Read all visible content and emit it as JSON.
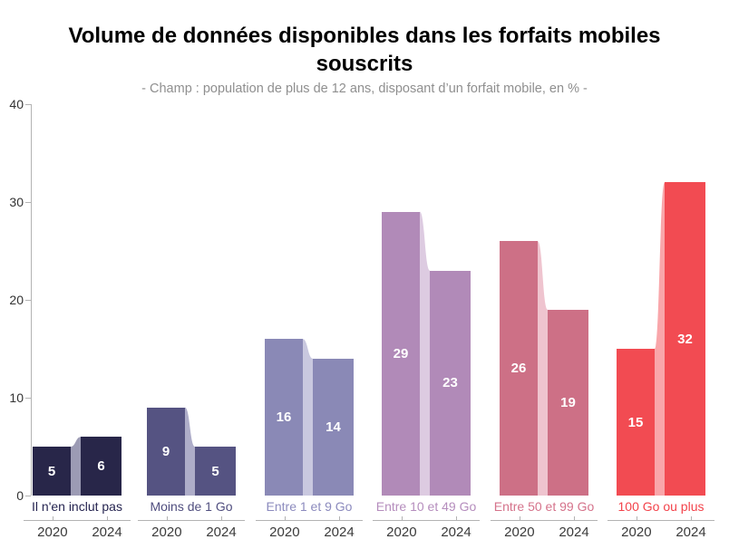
{
  "title": "Volume de données disponibles dans les forfaits mobiles souscrits",
  "subtitle": "- Champ : population de plus de 12 ans, disposant d’un forfait mobile, en % -",
  "axis": {
    "line_color": "#b3b3b3",
    "tick_label_color": "#333333",
    "year_label_color": "#3a3a3a"
  },
  "chart_data": {
    "type": "bar",
    "subtype": "paired-columns-with-slope-connectors",
    "title": "Volume de données disponibles dans les forfaits mobiles souscrits",
    "subtitle": "- Champ : population de plus de 12 ans, disposant d’un forfait mobile, en % -",
    "unit": "%",
    "grid": false,
    "ylim": [
      0,
      40
    ],
    "yticks": [
      0,
      10,
      20,
      30,
      40
    ],
    "years": [
      "2020",
      "2024"
    ],
    "categories": [
      {
        "label": "Il n'en inclut pas",
        "v2020": 5,
        "v2024": 6,
        "bar_color": "#282649",
        "connector_color": "#9c9bb4",
        "label_color": "#252450"
      },
      {
        "label": "Moins de 1 Go",
        "v2020": 9,
        "v2024": 5,
        "bar_color": "#555382",
        "connector_color": "#aeadc9",
        "label_color": "#504e7f"
      },
      {
        "label": "Entre 1 et 9 Go",
        "v2020": 16,
        "v2024": 14,
        "bar_color": "#8a89b6",
        "connector_color": "#c9c8df",
        "label_color": "#8c8bbe"
      },
      {
        "label": "Entre 10 et 49 Go",
        "v2020": 29,
        "v2024": 23,
        "bar_color": "#b18ab8",
        "connector_color": "#ddcbe1",
        "label_color": "#b58dbd"
      },
      {
        "label": "Entre 50 et 99 Go",
        "v2020": 26,
        "v2024": 19,
        "bar_color": "#cd7086",
        "connector_color": "#efc4cf",
        "label_color": "#d5738b"
      },
      {
        "label": "100 Go ou plus",
        "v2020": 15,
        "v2024": 32,
        "bar_color": "#f24b52",
        "connector_color": "#f9a6aa",
        "label_color": "#f3434b"
      }
    ]
  }
}
